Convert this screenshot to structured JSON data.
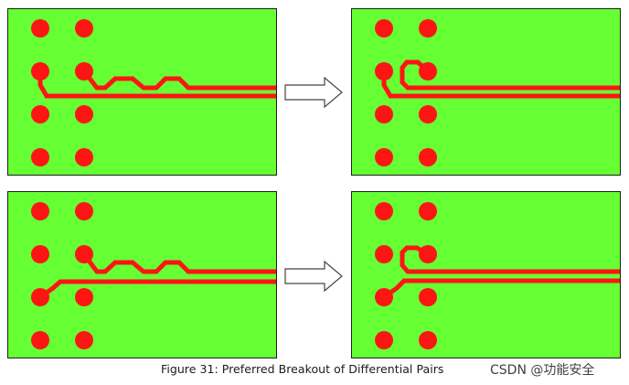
{
  "figure": {
    "caption": "Figure 31: Preferred Breakout of Differential Pairs",
    "watermark": "CSDN @功能安全"
  },
  "colors": {
    "board": "#66ff33",
    "copper": "#ff1414",
    "border": "#1e1e1e",
    "arrow": "#444444"
  },
  "panels": [
    {
      "name": "panel-before-top",
      "state": "before"
    },
    {
      "name": "panel-after-top",
      "state": "after"
    },
    {
      "name": "panel-before-bottom",
      "state": "before"
    },
    {
      "name": "panel-after-bottom",
      "state": "after"
    }
  ],
  "arrows": [
    {
      "name": "arrow-top",
      "direction": "right"
    },
    {
      "name": "arrow-bottom",
      "direction": "right"
    }
  ]
}
